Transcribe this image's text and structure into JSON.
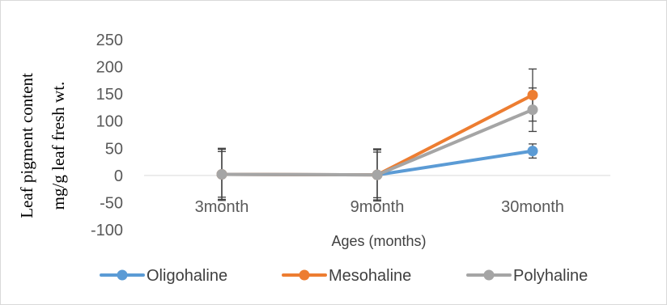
{
  "chart_data": {
    "type": "line",
    "categories": [
      "3month",
      "9month",
      "30month"
    ],
    "xlabel": "Ages (months)",
    "ylabel_lines": [
      "Leaf pigment content",
      "mg/g  leaf fresh wt."
    ],
    "ylim": [
      -100,
      250
    ],
    "yticks": [
      -100,
      -50,
      0,
      50,
      100,
      150,
      200,
      250
    ],
    "grid": false,
    "legend_position": "bottom",
    "series": [
      {
        "name": "Oligohaline",
        "color": "#5b9bd5",
        "values": [
          2,
          1,
          45
        ],
        "errors": [
          48,
          48,
          13
        ]
      },
      {
        "name": "Mesohaline",
        "color": "#ed7d31",
        "values": [
          2,
          1,
          148
        ],
        "errors": [
          46,
          46,
          48
        ]
      },
      {
        "name": "Polyhaline",
        "color": "#a5a5a5",
        "values": [
          2,
          1,
          121
        ],
        "errors": [
          42,
          42,
          40
        ]
      }
    ]
  }
}
